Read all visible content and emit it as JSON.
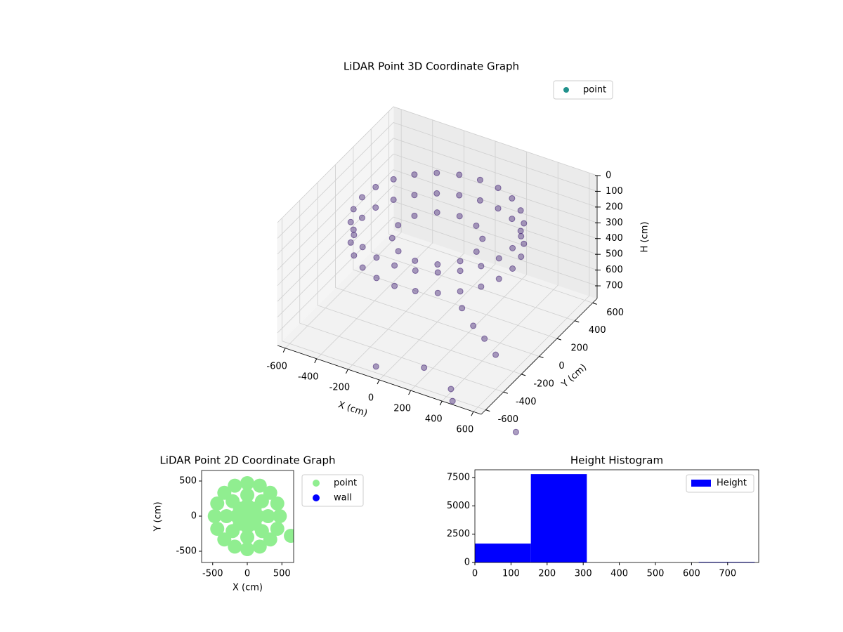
{
  "chart_data": [
    {
      "type": "scatter3d",
      "title": "LiDAR Point 3D Coordinate Graph",
      "xlabel": "X (cm)",
      "ylabel": "Y (cm)",
      "zlabel": "H (cm)",
      "xlim": [
        -650,
        650
      ],
      "ylim": [
        -650,
        650
      ],
      "zlim": [
        0,
        780
      ],
      "zinvert": true,
      "xticks": [
        -600,
        -400,
        -200,
        0,
        200,
        400,
        600
      ],
      "yticks": [
        -600,
        -400,
        -200,
        0,
        200,
        400,
        600
      ],
      "zticks": [
        0,
        100,
        200,
        300,
        400,
        500,
        600,
        700
      ],
      "grid": true,
      "legend": "upper right",
      "series": [
        {
          "name": "point",
          "color": "#21918c",
          "point_color": "#482878",
          "x": [
            480,
            464,
            416,
            339,
            240,
            124,
            0,
            -124,
            -240,
            -339,
            -416,
            -464,
            -480,
            -464,
            -416,
            -339,
            -240,
            -124,
            0,
            124,
            240,
            339,
            416,
            464,
            480,
            464,
            416,
            339,
            240,
            124,
            0,
            -124,
            -240,
            -339,
            -416,
            -464,
            -480,
            -464,
            -416,
            -339,
            -240,
            -124,
            0,
            124,
            240,
            339,
            416,
            464,
            250,
            217,
            125,
            0,
            -125,
            -217,
            -250,
            -217,
            -125,
            0,
            125,
            217,
            300,
            400,
            500,
            600,
            200,
            400,
            450,
            -50,
            900
          ],
          "y": [
            0,
            124,
            240,
            339,
            416,
            464,
            480,
            464,
            416,
            339,
            240,
            124,
            0,
            -124,
            -240,
            -339,
            -416,
            -464,
            -480,
            -464,
            -416,
            -339,
            -240,
            -124,
            0,
            124,
            240,
            339,
            416,
            464,
            480,
            464,
            416,
            339,
            240,
            124,
            0,
            -124,
            -240,
            -339,
            -416,
            -464,
            -480,
            -464,
            -416,
            -339,
            -240,
            -124,
            0,
            125,
            217,
            250,
            217,
            125,
            0,
            -125,
            -217,
            -250,
            -217,
            -125,
            -250,
            -300,
            -350,
            -400,
            -500,
            -550,
            -620,
            -600,
            -700
          ],
          "z": [
            150,
            150,
            150,
            150,
            150,
            150,
            150,
            150,
            150,
            150,
            150,
            150,
            150,
            150,
            150,
            150,
            150,
            150,
            150,
            150,
            150,
            150,
            150,
            150,
            280,
            280,
            280,
            280,
            280,
            280,
            280,
            280,
            280,
            280,
            280,
            280,
            280,
            280,
            280,
            280,
            280,
            280,
            280,
            280,
            280,
            280,
            280,
            280,
            250,
            250,
            250,
            250,
            250,
            250,
            250,
            250,
            250,
            250,
            250,
            250,
            450,
            500,
            520,
            560,
            720,
            760,
            780,
            740,
            780
          ]
        }
      ]
    },
    {
      "type": "scatter",
      "title": "LiDAR Point 2D Coordinate Graph",
      "xlabel": "X (cm)",
      "ylabel": "Y (cm)",
      "xlim": [
        -660,
        670
      ],
      "ylim": [
        -660,
        650
      ],
      "xticks": [
        -500,
        0,
        500
      ],
      "yticks": [
        -500,
        0,
        500
      ],
      "legend": "outside right",
      "series": [
        {
          "name": "point",
          "color": "#90ee90",
          "x": [
            470,
            434,
            332,
            180,
            0,
            -180,
            -332,
            -434,
            -470,
            -434,
            -332,
            -180,
            0,
            180,
            332,
            434,
            300,
            212,
            0,
            -212,
            -300,
            -212,
            0,
            212,
            150,
            106,
            0,
            -106,
            -150,
            -106,
            0,
            106,
            0,
            630
          ],
          "y": [
            0,
            180,
            332,
            434,
            470,
            434,
            332,
            180,
            0,
            -180,
            -332,
            -434,
            -470,
            -434,
            -332,
            -180,
            0,
            212,
            300,
            212,
            0,
            -212,
            -300,
            -212,
            0,
            106,
            150,
            106,
            0,
            -106,
            -150,
            -106,
            0,
            -280
          ]
        },
        {
          "name": "wall",
          "color": "#0000ff",
          "x": [],
          "y": []
        }
      ]
    },
    {
      "type": "histogram",
      "title": "Height Histogram",
      "bins": [
        0,
        155,
        310,
        465,
        620,
        775
      ],
      "xlim": [
        0,
        786
      ],
      "ylim": [
        0,
        8190
      ],
      "xticks": [
        0,
        100,
        200,
        300,
        400,
        500,
        600,
        700
      ],
      "yticks": [
        0,
        2500,
        5000,
        7500
      ],
      "legend": "upper right",
      "series": [
        {
          "name": "Height",
          "color": "#0000ff",
          "values": [
            1670,
            7810,
            0,
            0,
            50
          ]
        }
      ]
    }
  ]
}
